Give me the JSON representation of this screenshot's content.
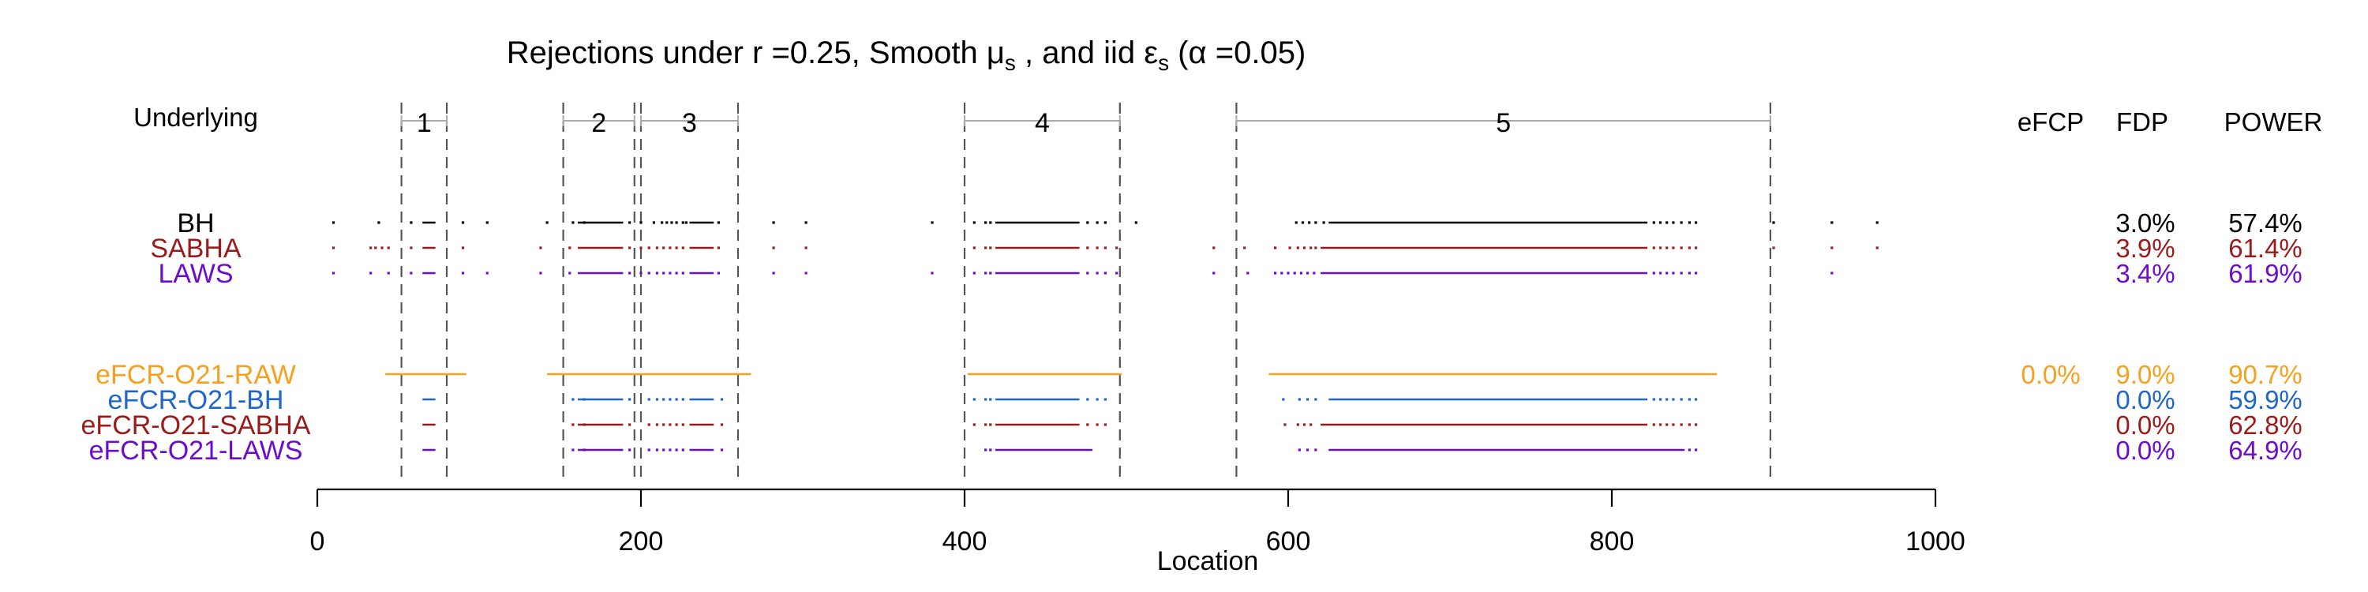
{
  "chart_data": {
    "type": "scatter",
    "title": {
      "prefix": "Rejections under  r =0.25,  Smooth ",
      "mu": "μ",
      "mu_sub": "s",
      "middle": " , and iid  ",
      "eps": "ε",
      "eps_sub": "s",
      "suffix": "  (α =0.05)"
    },
    "xlabel": "Location",
    "xlim": [
      0,
      1000
    ],
    "xticks": [
      0,
      200,
      400,
      600,
      800,
      1000
    ],
    "underlying_label": "Underlying",
    "regions": [
      {
        "label": "1",
        "start": 52,
        "end": 80
      },
      {
        "label": "2",
        "start": 152,
        "end": 196
      },
      {
        "label": "3",
        "start": 200,
        "end": 260
      },
      {
        "label": "4",
        "start": 400,
        "end": 496
      },
      {
        "label": "5",
        "start": 568,
        "end": 898
      }
    ],
    "column_headers": [
      "eFCP",
      "FDP",
      "POWER"
    ],
    "colors": {
      "BH": "#000000",
      "SABHA": "#9b1b1b",
      "LAWS": "#6a0dcc",
      "eFCR-O21-RAW": "#f5a020",
      "eFCR-O21-BH": "#1f66cc",
      "eFCR-O21-SABHA": "#9b1b1b",
      "eFCR-O21-LAWS": "#6a0dcc",
      "dashed": "#555555",
      "bracket": "#aaaaaa"
    },
    "series": [
      {
        "name": "BH",
        "eFCP": "",
        "FDP": "3.0%",
        "POWER": "57.4%",
        "segments": [
          [
            65,
            73
          ],
          [
            161,
            189
          ],
          [
            230,
            245
          ],
          [
            419,
            471
          ],
          [
            625,
            822
          ]
        ],
        "points": [
          10,
          38,
          58,
          90,
          105,
          142,
          158,
          165,
          193,
          200,
          208,
          213,
          216,
          219,
          222,
          226,
          228,
          248,
          282,
          302,
          380,
          406,
          413,
          416,
          476,
          482,
          487,
          506,
          605,
          609,
          613,
          617,
          622,
          826,
          830,
          834,
          838,
          843,
          848,
          852,
          900,
          936,
          964
        ]
      },
      {
        "name": "SABHA",
        "eFCP": "",
        "FDP": "3.9%",
        "POWER": "61.4%",
        "segments": [
          [
            65,
            73
          ],
          [
            161,
            189
          ],
          [
            230,
            245
          ],
          [
            419,
            471
          ],
          [
            620,
            822
          ]
        ],
        "points": [
          10,
          33,
          36,
          40,
          44,
          58,
          90,
          138,
          156,
          193,
          200,
          205,
          210,
          214,
          218,
          222,
          226,
          248,
          282,
          302,
          406,
          413,
          416,
          476,
          482,
          487,
          494,
          554,
          573,
          592,
          601,
          606,
          610,
          614,
          617,
          826,
          830,
          834,
          838,
          843,
          848,
          852,
          900,
          936,
          964
        ]
      },
      {
        "name": "LAWS",
        "eFCP": "",
        "FDP": "3.4%",
        "POWER": "61.9%",
        "segments": [
          [
            65,
            73
          ],
          [
            161,
            189
          ],
          [
            230,
            245
          ],
          [
            419,
            471
          ],
          [
            620,
            822
          ]
        ],
        "points": [
          10,
          33,
          44,
          58,
          90,
          105,
          138,
          156,
          193,
          200,
          205,
          210,
          214,
          218,
          222,
          226,
          248,
          282,
          302,
          380,
          406,
          413,
          416,
          476,
          482,
          487,
          494,
          554,
          575,
          592,
          596,
          600,
          604,
          608,
          612,
          616,
          826,
          830,
          834,
          838,
          843,
          848,
          852,
          936
        ]
      },
      {
        "name": "eFCR-O21-RAW",
        "eFCP": "0.0%",
        "FDP": "9.0%",
        "POWER": "90.7%",
        "segments": [
          [
            42,
            92
          ],
          [
            142,
            268
          ],
          [
            402,
            497
          ],
          [
            588,
            865
          ]
        ],
        "points": []
      },
      {
        "name": "eFCR-O21-BH",
        "eFCP": "",
        "FDP": "0.0%",
        "POWER": "59.9%",
        "segments": [
          [
            65,
            73
          ],
          [
            161,
            189
          ],
          [
            230,
            245
          ],
          [
            419,
            471
          ],
          [
            625,
            822
          ]
        ],
        "points": [
          158,
          165,
          193,
          205,
          210,
          214,
          218,
          222,
          226,
          250,
          406,
          413,
          416,
          476,
          482,
          487,
          597,
          607,
          612,
          617,
          826,
          830,
          834,
          838,
          843,
          848,
          852
        ]
      },
      {
        "name": "eFCR-O21-SABHA",
        "eFCP": "",
        "FDP": "0.0%",
        "POWER": "62.8%",
        "segments": [
          [
            65,
            73
          ],
          [
            161,
            189
          ],
          [
            230,
            245
          ],
          [
            419,
            471
          ],
          [
            620,
            822
          ]
        ],
        "points": [
          158,
          165,
          193,
          205,
          210,
          214,
          218,
          222,
          226,
          250,
          406,
          413,
          416,
          476,
          482,
          487,
          598,
          606,
          610,
          614,
          826,
          830,
          834,
          838,
          843,
          848,
          852
        ]
      },
      {
        "name": "eFCR-O21-LAWS",
        "eFCP": "",
        "FDP": "0.0%",
        "POWER": "64.9%",
        "segments": [
          [
            65,
            73
          ],
          [
            161,
            189
          ],
          [
            230,
            245
          ],
          [
            419,
            479
          ],
          [
            625,
            845
          ]
        ],
        "points": [
          158,
          165,
          193,
          205,
          210,
          214,
          218,
          222,
          226,
          250,
          413,
          416,
          607,
          612,
          617,
          848,
          852
        ]
      }
    ]
  }
}
